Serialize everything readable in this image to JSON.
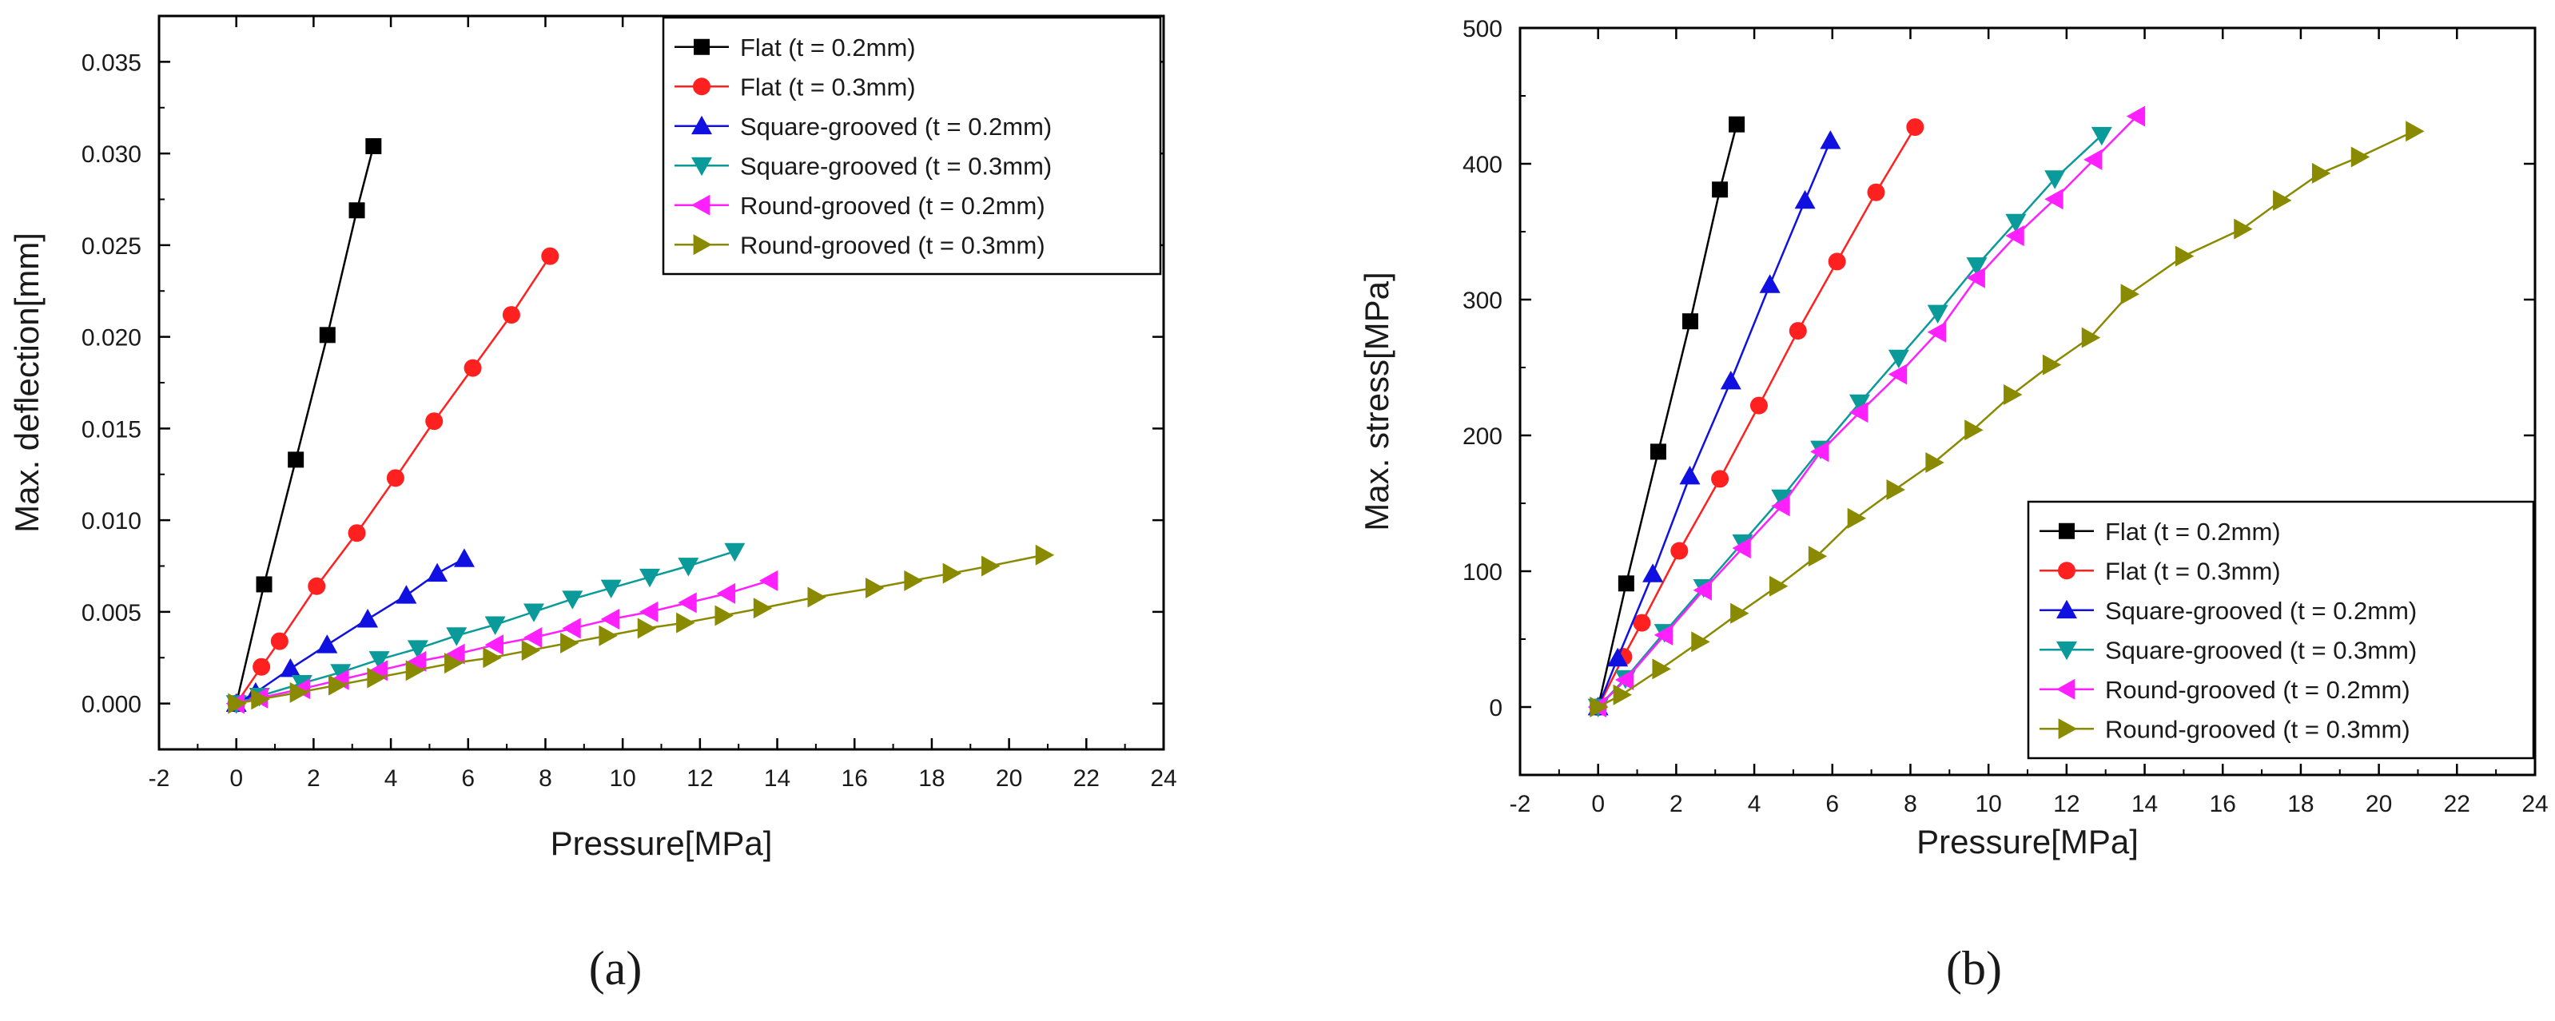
{
  "chart_data": [
    {
      "type": "line",
      "panel_label": "(a)",
      "title": "",
      "xlabel": "Pressure[MPa]",
      "ylabel": "Max. deflection[mm]",
      "xlim": [
        -2,
        24
      ],
      "ylim": [
        -0.0025,
        0.0375
      ],
      "xticks": [
        -2,
        0,
        2,
        4,
        6,
        8,
        10,
        12,
        14,
        16,
        18,
        20,
        22,
        24
      ],
      "xtick_labels": [
        "-2",
        "0",
        "2",
        "4",
        "6",
        "8",
        "10",
        "12",
        "14",
        "16",
        "18",
        "20",
        "22",
        "24"
      ],
      "yticks": [
        0,
        0.005,
        0.01,
        0.015,
        0.02,
        0.025,
        0.03,
        0.035
      ],
      "ytick_labels": [
        "0.000",
        "0.005",
        "0.010",
        "0.015",
        "0.020",
        "0.025",
        "0.030",
        "0.035"
      ],
      "legend_position": "top-right",
      "series": [
        {
          "name": "Flat (t = 0.2mm)",
          "color": "#000000",
          "marker": "square",
          "x": [
            0,
            0.72,
            1.54,
            2.36,
            3.12,
            3.55
          ],
          "y": [
            0,
            0.0065,
            0.0133,
            0.0201,
            0.0269,
            0.0304
          ]
        },
        {
          "name": "Flat (t = 0.3mm)",
          "color": "#ff2020",
          "marker": "circle",
          "x": [
            0,
            0.65,
            1.12,
            2.08,
            3.12,
            4.12,
            5.12,
            6.12,
            7.12,
            8.12
          ],
          "y": [
            0,
            0.002,
            0.0034,
            0.0064,
            0.0093,
            0.0123,
            0.0154,
            0.0183,
            0.0212,
            0.0244
          ]
        },
        {
          "name": "Square-grooved (t = 0.2mm)",
          "color": "#1010e0",
          "marker": "triangle-up",
          "x": [
            0,
            0.5,
            1.4,
            2.35,
            3.4,
            4.4,
            5.2,
            5.9
          ],
          "y": [
            0,
            0.0006,
            0.0019,
            0.0032,
            0.0046,
            0.0059,
            0.0071,
            0.0079
          ]
        },
        {
          "name": "Square-grooved (t = 0.3mm)",
          "color": "#0a9a9a",
          "marker": "triangle-down",
          "x": [
            0,
            0.6,
            1.7,
            2.7,
            3.7,
            4.7,
            5.7,
            6.7,
            7.7,
            8.7,
            9.7,
            10.7,
            11.7,
            12.9
          ],
          "y": [
            0,
            0.0004,
            0.0011,
            0.0017,
            0.0024,
            0.003,
            0.0037,
            0.0043,
            0.005,
            0.0057,
            0.0063,
            0.0069,
            0.0075,
            0.0083
          ]
        },
        {
          "name": "Round-grooved (t = 0.2mm)",
          "color": "#ff20ff",
          "marker": "triangle-left",
          "x": [
            0,
            0.6,
            1.7,
            2.7,
            3.7,
            4.7,
            5.7,
            6.7,
            7.7,
            8.7,
            9.7,
            10.7,
            11.7,
            12.7,
            13.8
          ],
          "y": [
            0,
            0.0003,
            0.0008,
            0.0013,
            0.0018,
            0.0023,
            0.0027,
            0.0032,
            0.0036,
            0.0041,
            0.0046,
            0.005,
            0.0055,
            0.006,
            0.0067
          ]
        },
        {
          "name": "Round-grooved (t = 0.3mm)",
          "color": "#8a8a00",
          "marker": "triangle-right",
          "x": [
            0,
            0.6,
            1.6,
            2.6,
            3.6,
            4.6,
            5.6,
            6.6,
            7.6,
            8.6,
            9.6,
            10.6,
            11.6,
            12.6,
            13.6,
            15.0,
            16.5,
            17.5,
            18.5,
            19.5,
            20.9
          ],
          "y": [
            0,
            0.00023,
            0.0006,
            0.001,
            0.0014,
            0.0018,
            0.0022,
            0.0025,
            0.0029,
            0.0033,
            0.0037,
            0.0041,
            0.0044,
            0.0048,
            0.0052,
            0.0058,
            0.0063,
            0.0067,
            0.0071,
            0.0075,
            0.0081
          ]
        }
      ]
    },
    {
      "type": "line",
      "panel_label": "(b)",
      "title": "",
      "xlabel": "Pressure[MPa]",
      "ylabel": "Max. stress[MPa]",
      "xlim": [
        -2,
        24
      ],
      "ylim": [
        -50,
        500
      ],
      "xticks": [
        -2,
        0,
        2,
        4,
        6,
        8,
        10,
        12,
        14,
        16,
        18,
        20,
        22,
        24
      ],
      "xtick_labels": [
        "-2",
        "0",
        "2",
        "4",
        "6",
        "8",
        "10",
        "12",
        "14",
        "16",
        "18",
        "20",
        "22",
        "24"
      ],
      "yticks": [
        0,
        100,
        200,
        300,
        400,
        500
      ],
      "ytick_labels": [
        "0",
        "100",
        "200",
        "300",
        "400",
        "500"
      ],
      "legend_position": "bottom-right",
      "series": [
        {
          "name": "Flat (t = 0.2mm)",
          "color": "#000000",
          "marker": "square",
          "x": [
            0,
            0.72,
            1.54,
            2.36,
            3.12,
            3.55
          ],
          "y": [
            0,
            91,
            188,
            284,
            381,
            429
          ]
        },
        {
          "name": "Flat (t = 0.3mm)",
          "color": "#ff2020",
          "marker": "circle",
          "x": [
            0,
            0.65,
            1.12,
            2.08,
            3.12,
            4.12,
            5.12,
            6.12,
            7.12,
            8.12
          ],
          "y": [
            0,
            37,
            62,
            115,
            168,
            222,
            277,
            328,
            379,
            427
          ]
        },
        {
          "name": "Square-grooved (t = 0.2mm)",
          "color": "#1010e0",
          "marker": "triangle-up",
          "x": [
            0,
            0.5,
            1.4,
            2.35,
            3.4,
            4.4,
            5.3,
            5.95
          ],
          "y": [
            0,
            36,
            98,
            170,
            240,
            311,
            373,
            417
          ]
        },
        {
          "name": "Square-grooved (t = 0.3mm)",
          "color": "#0a9a9a",
          "marker": "triangle-down",
          "x": [
            0,
            0.7,
            1.7,
            2.7,
            3.7,
            4.7,
            5.7,
            6.7,
            7.7,
            8.7,
            9.7,
            10.7,
            11.7,
            12.9
          ],
          "y": [
            0,
            21,
            55,
            88,
            121,
            154,
            190,
            224,
            257,
            290,
            325,
            357,
            389,
            421
          ]
        },
        {
          "name": "Round-grooved (t = 0.2mm)",
          "color": "#ff20ff",
          "marker": "triangle-left",
          "x": [
            0,
            0.7,
            1.7,
            2.7,
            3.7,
            4.7,
            5.7,
            6.7,
            7.7,
            8.7,
            9.7,
            10.7,
            11.7,
            12.7,
            13.8
          ],
          "y": [
            0,
            20,
            53,
            86,
            117,
            148,
            188,
            217,
            245,
            276,
            316,
            347,
            374,
            403,
            435
          ]
        },
        {
          "name": "Round-grooved (t = 0.3mm)",
          "color": "#8a8a00",
          "marker": "triangle-right",
          "x": [
            0,
            0.6,
            1.6,
            2.6,
            3.6,
            4.6,
            5.6,
            6.6,
            7.6,
            8.6,
            9.6,
            10.6,
            11.6,
            12.6,
            13.6,
            15.0,
            16.5,
            17.5,
            18.5,
            19.5,
            20.9
          ],
          "y": [
            0,
            9,
            28,
            48,
            69,
            89,
            111,
            139,
            160,
            180,
            204,
            230,
            252,
            272,
            304,
            332,
            352,
            373,
            393,
            405,
            424
          ]
        }
      ]
    }
  ]
}
